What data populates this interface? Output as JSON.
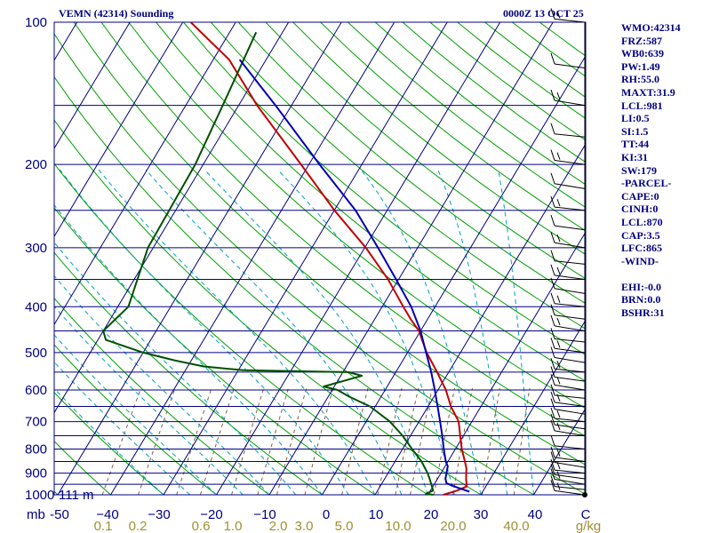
{
  "header": {
    "title": "VEMN (42314) Sounding",
    "time": "0000Z 13 OCT 25"
  },
  "indices": [
    "WMO:42314",
    "FRZ:587",
    "WB0:639",
    "PW:1.49",
    "RH:55.0",
    "MAXT:31.9",
    "LCL:981",
    "LI:0.5",
    "SI:1.5",
    "TT:44",
    "KI:31",
    "SW:179",
    "-PARCEL-",
    "CAPE:0",
    "CINH:0",
    "LCL:870",
    "CAP:3.5",
    "LFC:865",
    "-WIND-",
    "",
    "EHI:-0.0",
    "BRN:0.0",
    "BSHR:31"
  ],
  "colors": {
    "frame": "#000080",
    "isobar": "#000080",
    "isotherm": "#000080",
    "dry_adiabat": "#00a000",
    "moist_adiabat": "#00a0c0",
    "mixing_ratio": "#806040",
    "temperature": "#c00000",
    "dewpoint": "#005000",
    "parcel": "#0000b0",
    "wind_barb": "#000000",
    "mixing_label": "#a09030"
  },
  "chart_data": {
    "type": "line",
    "chart_kind": "skew-T log-P sounding",
    "title": "VEMN (42314) Sounding",
    "pressure_axis": {
      "unit": "mb",
      "range": [
        1000,
        100
      ],
      "scale": "log",
      "tick_labels": [
        "1000",
        "900",
        "800",
        "700",
        "600",
        "500",
        "400",
        "300",
        "200",
        "100"
      ]
    },
    "temperature_axis": {
      "range": [
        -50,
        50
      ],
      "tick_labels": [
        "-50",
        "−40",
        "−30",
        "−20",
        "−10",
        "0",
        "10",
        "20",
        "30",
        "40",
        "C"
      ],
      "skewed": true
    },
    "mixing_ratio_axis": {
      "unit": "g/kg",
      "tick_labels": [
        "0.1",
        "0.2",
        "0.6",
        "1.0",
        "2.0",
        "3.0",
        "5.0",
        "10.0",
        "20.0",
        "40.0",
        "g/kg"
      ]
    },
    "surface_height_label": "111 m",
    "series": [
      {
        "key": "temperature",
        "points": [
          [
            1000,
            22.9
          ],
          [
            980,
            25.0
          ],
          [
            960,
            26.4
          ],
          [
            925,
            25.4
          ],
          [
            880,
            24.3
          ],
          [
            850,
            23.2
          ],
          [
            800,
            21.2
          ],
          [
            750,
            19.4
          ],
          [
            700,
            17.5
          ],
          [
            650,
            14.3
          ],
          [
            600,
            11.5
          ],
          [
            550,
            7.8
          ],
          [
            500,
            3.6
          ],
          [
            450,
            -0.3
          ],
          [
            425,
            -3.2
          ],
          [
            400,
            -6.0
          ],
          [
            350,
            -12.0
          ],
          [
            300,
            -19.8
          ],
          [
            250,
            -30.0
          ],
          [
            200,
            -41.5
          ],
          [
            150,
            -56.5
          ],
          [
            120,
            -67.0
          ],
          [
            100,
            -78.5
          ]
        ]
      },
      {
        "key": "dewpoint",
        "points": [
          [
            1000,
            21.0
          ],
          [
            995,
            19.5
          ],
          [
            980,
            20.5
          ],
          [
            960,
            19.8
          ],
          [
            925,
            18.5
          ],
          [
            900,
            17.5
          ],
          [
            850,
            15.0
          ],
          [
            800,
            11.8
          ],
          [
            750,
            8.5
          ],
          [
            700,
            4.5
          ],
          [
            650,
            -1.0
          ],
          [
            620,
            -6.0
          ],
          [
            600,
            -9.0
          ],
          [
            590,
            -12.0
          ],
          [
            560,
            -6.0
          ],
          [
            550,
            -9.0
          ],
          [
            545,
            -29.0
          ],
          [
            535,
            -37.0
          ],
          [
            520,
            -43.0
          ],
          [
            500,
            -50.0
          ],
          [
            470,
            -58.5
          ],
          [
            450,
            -60.0
          ],
          [
            400,
            -58.0
          ],
          [
            300,
            -61.0
          ],
          [
            200,
            -61.5
          ],
          [
            150,
            -63.0
          ],
          [
            105,
            -65.0
          ]
        ]
      },
      {
        "key": "parcel",
        "points": [
          [
            985,
            27.5
          ],
          [
            960,
            24.0
          ],
          [
            945,
            22.2
          ],
          [
            925,
            21.5
          ],
          [
            870,
            20.5
          ],
          [
            850,
            19.6
          ],
          [
            800,
            17.8
          ],
          [
            750,
            16.0
          ],
          [
            700,
            14.0
          ],
          [
            650,
            11.8
          ],
          [
            600,
            9.4
          ],
          [
            550,
            6.7
          ],
          [
            500,
            3.5
          ],
          [
            450,
            0.0
          ],
          [
            400,
            -4.5
          ],
          [
            350,
            -10.5
          ],
          [
            300,
            -17.5
          ],
          [
            250,
            -26.0
          ],
          [
            200,
            -38.0
          ],
          [
            150,
            -53.0
          ],
          [
            120,
            -65.0
          ]
        ]
      }
    ],
    "wind_levels_mb": [
      1000,
      975,
      950,
      925,
      900,
      875,
      850,
      800,
      750,
      725,
      700,
      675,
      650,
      625,
      600,
      575,
      550,
      525,
      500,
      475,
      450,
      425,
      400,
      375,
      350,
      325,
      300,
      275,
      250,
      225,
      200,
      175,
      150,
      125,
      100
    ],
    "grid": true
  }
}
